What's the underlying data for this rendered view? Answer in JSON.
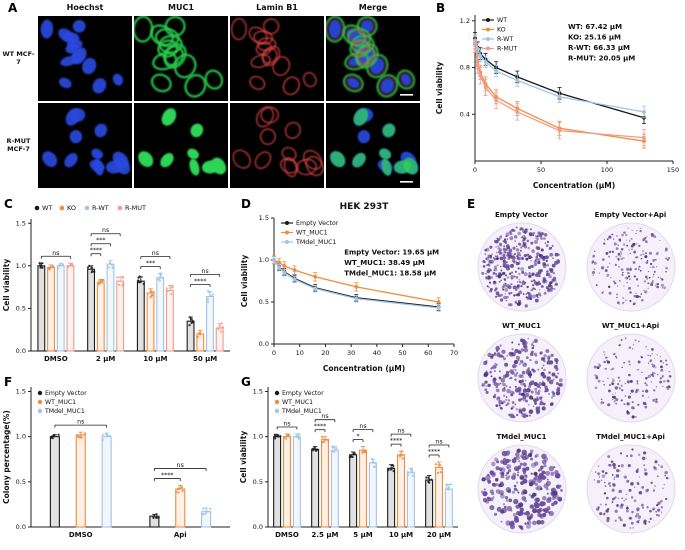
{
  "panels": {
    "A": {
      "label": "A",
      "col_headers": [
        "Hoechst",
        "MUC1",
        "Lamin B1",
        "Merge"
      ],
      "rows": [
        {
          "label": "WT MCF-7",
          "seed": 7,
          "cells": [
            {
              "name": "hoechst",
              "layers": [
                {
                  "shape": "nuclei",
                  "color": "#2c49dd",
                  "count": 13
                }
              ]
            },
            {
              "name": "muc1",
              "layers": [
                {
                  "shape": "rings",
                  "color": "#27ca4d",
                  "count": 13,
                  "grow": 3,
                  "width": 2.4
                }
              ]
            },
            {
              "name": "lamin-b1",
              "layers": [
                {
                  "shape": "rings",
                  "color": "#de4343",
                  "count": 13,
                  "grow": 1,
                  "width": 1.4,
                  "opacity": 0.85
                }
              ]
            },
            {
              "name": "merge",
              "layers": [
                {
                  "shape": "nuclei",
                  "color": "#2c49dd",
                  "count": 13
                },
                {
                  "shape": "rings",
                  "color": "#27ca4d",
                  "count": 13,
                  "grow": 3,
                  "width": 2.4,
                  "opacity": 0.8
                },
                {
                  "shape": "rings",
                  "color": "#de4343",
                  "count": 13,
                  "grow": 1,
                  "width": 1.2,
                  "opacity": 0.5
                },
                {
                  "shape": "scalebar",
                  "color": "#ffffff"
                }
              ]
            }
          ]
        },
        {
          "label": "R-MUT MCF-7",
          "seed": 31,
          "cells": [
            {
              "name": "hoechst",
              "layers": [
                {
                  "shape": "nuclei",
                  "color": "#2c49dd",
                  "count": 12
                }
              ]
            },
            {
              "name": "muc1",
              "layers": [
                {
                  "shape": "nuclei",
                  "color": "#2fd457",
                  "count": 8,
                  "opacity": 1
                }
              ]
            },
            {
              "name": "lamin-b1",
              "layers": [
                {
                  "shape": "rings",
                  "color": "#de4343",
                  "count": 12,
                  "grow": 1,
                  "width": 1.4,
                  "opacity": 0.85
                }
              ]
            },
            {
              "name": "merge",
              "layers": [
                {
                  "shape": "nuclei",
                  "color": "#2c49dd",
                  "count": 12
                },
                {
                  "shape": "nuclei",
                  "color": "#2fd457",
                  "count": 8,
                  "opacity": 0.75
                },
                {
                  "shape": "scalebar",
                  "color": "#ffffff"
                }
              ]
            }
          ]
        }
      ]
    },
    "B": {
      "label": "B"
    },
    "C": {
      "label": "C"
    },
    "D": {
      "label": "D"
    },
    "E": {
      "label": "E",
      "plates": [
        {
          "name": "Empty Vector",
          "dots": 400,
          "dot_r": [
            0.7,
            2.0
          ],
          "seed": 101
        },
        {
          "name": "Empty Vector+Api",
          "dots": 190,
          "dot_r": [
            0.5,
            1.6
          ],
          "seed": 102
        },
        {
          "name": "WT_MUC1",
          "dots": 300,
          "dot_r": [
            0.8,
            2.3
          ],
          "seed": 103
        },
        {
          "name": "WT_MUC1+Api",
          "dots": 160,
          "dot_r": [
            0.5,
            1.7
          ],
          "seed": 104
        },
        {
          "name": "TMdel_MUC1",
          "dots": 260,
          "dot_r": [
            1.0,
            2.8
          ],
          "seed": 105
        },
        {
          "name": "TMdel_MUC1+Api",
          "dots": 150,
          "dot_r": [
            0.6,
            1.8
          ],
          "seed": 106
        }
      ],
      "colony_color": "#6a4d9f"
    },
    "F": {
      "label": "F"
    },
    "G": {
      "label": "G"
    }
  },
  "chart_data": [
    {
      "id": "B",
      "type": "line",
      "title": "",
      "xlabel": "Concentration (μM)",
      "ylabel": "Cell viability",
      "xlim": [
        0,
        150
      ],
      "ylim": [
        0,
        1.25
      ],
      "ml": 42,
      "x_ticks": [
        0,
        50,
        100,
        150
      ],
      "y_ticks": [
        0.4,
        0.8,
        1.2
      ],
      "x": [
        0,
        2,
        4,
        8,
        16,
        32,
        64,
        128
      ],
      "series": [
        {
          "name": "WT",
          "color": "#1a1a1a",
          "values": [
            1.05,
            0.97,
            0.92,
            0.87,
            0.8,
            0.72,
            0.58,
            0.37
          ],
          "err": 0.05
        },
        {
          "name": "KO",
          "color": "#f08c3f",
          "values": [
            1.02,
            0.85,
            0.76,
            0.66,
            0.55,
            0.45,
            0.28,
            0.17
          ],
          "err": 0.06
        },
        {
          "name": "R-WT",
          "color": "#9fc5e8",
          "values": [
            1.03,
            0.96,
            0.9,
            0.85,
            0.77,
            0.69,
            0.55,
            0.42
          ],
          "err": 0.05
        },
        {
          "name": "R-MUT",
          "color": "#f19b8e",
          "values": [
            1.0,
            0.82,
            0.73,
            0.63,
            0.52,
            0.42,
            0.26,
            0.2
          ],
          "err": 0.07
        }
      ],
      "ic50_lines": [
        "WT: 67.42 μM",
        "KO: 25.16 μM",
        "R-WT: 66.33 μM",
        "R-MUT: 20.05 μM"
      ],
      "ann_pos": [
        0.54,
        0.13
      ],
      "legend_position": "top-left"
    },
    {
      "id": "C",
      "type": "bar",
      "ylabel": "Cell viability",
      "ylim": [
        0,
        1.55
      ],
      "y_ticks": [
        0.0,
        0.5,
        1.0,
        1.5
      ],
      "categories": [
        "DMSO",
        "2 μM",
        "10 μM",
        "50 μM"
      ],
      "series": [
        {
          "name": "WT",
          "color": "#1a1a1a",
          "values": [
            1.0,
            0.96,
            0.82,
            0.35
          ],
          "errors": [
            0.03,
            0.04,
            0.05,
            0.05
          ]
        },
        {
          "name": "KO",
          "color": "#f08c3f",
          "values": [
            0.98,
            0.8,
            0.68,
            0.2
          ],
          "errors": [
            0.03,
            0.04,
            0.05,
            0.04
          ]
        },
        {
          "name": "R-WT",
          "color": "#9fc5e8",
          "values": [
            1.0,
            1.02,
            0.86,
            0.64
          ],
          "errors": [
            0.03,
            0.04,
            0.05,
            0.06
          ]
        },
        {
          "name": "R-MUT",
          "color": "#f19b8e",
          "values": [
            1.0,
            0.82,
            0.71,
            0.27
          ],
          "errors": [
            0.03,
            0.05,
            0.06,
            0.05
          ]
        }
      ],
      "annotations": [
        {
          "cat": "DMSO",
          "labels": [
            "ns"
          ]
        },
        {
          "cat": "2 μM",
          "labels": [
            "ns",
            "***",
            "****"
          ]
        },
        {
          "cat": "10 μM",
          "labels": [
            "ns",
            "***"
          ]
        },
        {
          "cat": "50 μM",
          "labels": [
            "ns",
            "****"
          ]
        }
      ],
      "legend": "top-horizontal"
    },
    {
      "id": "D",
      "type": "line",
      "title": "HEK 293T",
      "xlabel": "Concentration (μM)",
      "ylabel": "Cell viability",
      "xlim": [
        0,
        70
      ],
      "ylim": [
        0,
        1.5
      ],
      "ml": 36,
      "x_ticks": [
        0,
        10,
        20,
        30,
        40,
        50,
        60,
        70
      ],
      "y_ticks": [
        0.0,
        0.5,
        1.0,
        1.5
      ],
      "x": [
        0,
        2,
        4,
        8,
        16,
        32,
        64
      ],
      "series": [
        {
          "name": "Empty Vector",
          "color": "#1a1a1a",
          "values": [
            1.0,
            0.92,
            0.86,
            0.78,
            0.67,
            0.55,
            0.44
          ],
          "err": 0.04
        },
        {
          "name": "WT_MUC1",
          "color": "#f08c3f",
          "values": [
            1.0,
            0.97,
            0.93,
            0.88,
            0.8,
            0.68,
            0.5
          ],
          "err": 0.05
        },
        {
          "name": "TMdel_MUC1",
          "color": "#9fc5e8",
          "values": [
            1.0,
            0.91,
            0.85,
            0.77,
            0.66,
            0.54,
            0.43
          ],
          "err": 0.04
        }
      ],
      "ic50_lines": [
        "Empty Vector: 19.65 μM",
        "WT_MUC1: 38.49 μM",
        "TMdel_MUC1: 18.58 μM"
      ],
      "ann_pos": [
        0.47,
        0.32
      ],
      "legend_position": "top-left"
    },
    {
      "id": "F",
      "type": "bar",
      "ylabel": "Colony percentage(%)",
      "ylim": [
        0,
        1.55
      ],
      "y_ticks": [
        0.0,
        0.5,
        1.0,
        1.5
      ],
      "categories": [
        "DMSO",
        "Api"
      ],
      "series": [
        {
          "name": "Empty Vector",
          "color": "#1a1a1a",
          "values": [
            1.0,
            0.12
          ],
          "errors": [
            0.02,
            0.02
          ]
        },
        {
          "name": "WT_MUC1",
          "color": "#f08c3f",
          "values": [
            1.02,
            0.42
          ],
          "errors": [
            0.03,
            0.04
          ]
        },
        {
          "name": "TMdel_MUC1",
          "color": "#9fc5e8",
          "values": [
            1.0,
            0.17
          ],
          "errors": [
            0.04,
            0.04
          ]
        }
      ],
      "annotations": [
        {
          "cat": "DMSO",
          "labels": [
            "ns"
          ]
        },
        {
          "cat": "Api",
          "labels": [
            "ns",
            "****"
          ]
        }
      ],
      "legend": "topleft-vertical"
    },
    {
      "id": "G",
      "type": "bar",
      "ylabel": "Cell viability",
      "ylim": [
        0,
        1.55
      ],
      "y_ticks": [
        0.0,
        0.5,
        1.0,
        1.5
      ],
      "categories": [
        "DMSO",
        "2.5 μM",
        "5 μM",
        "10 μM",
        "20 μM"
      ],
      "series": [
        {
          "name": "Empty Vector",
          "color": "#1a1a1a",
          "values": [
            1.0,
            0.86,
            0.8,
            0.65,
            0.52
          ],
          "errors": [
            0.02,
            0.03,
            0.03,
            0.04,
            0.05
          ]
        },
        {
          "name": "WT_MUC1",
          "color": "#f08c3f",
          "values": [
            1.0,
            0.97,
            0.85,
            0.8,
            0.66
          ],
          "errors": [
            0.03,
            0.03,
            0.04,
            0.04,
            0.06
          ]
        },
        {
          "name": "TMdel_MUC1",
          "color": "#9fc5e8",
          "values": [
            1.0,
            0.85,
            0.71,
            0.6,
            0.42
          ],
          "errors": [
            0.03,
            0.04,
            0.04,
            0.05,
            0.05
          ]
        }
      ],
      "annotations": [
        {
          "cat": "DMSO",
          "labels": [
            "ns"
          ]
        },
        {
          "cat": "2.5 μM",
          "labels": [
            "ns",
            "****"
          ]
        },
        {
          "cat": "5 μM",
          "labels": [
            "ns",
            "*"
          ]
        },
        {
          "cat": "10 μM",
          "labels": [
            "ns",
            "****"
          ]
        },
        {
          "cat": "20 μM",
          "labels": [
            "ns",
            "****"
          ]
        }
      ],
      "legend": "topleft-vertical"
    }
  ]
}
